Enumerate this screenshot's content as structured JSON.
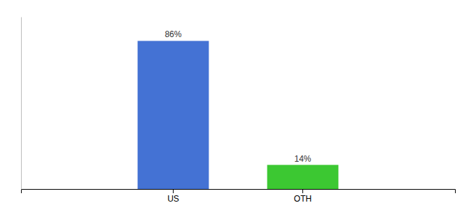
{
  "chart_data": {
    "type": "bar",
    "categories": [
      "US",
      "OTH"
    ],
    "values": [
      86,
      14
    ],
    "value_labels": [
      "86%",
      "14%"
    ],
    "colors": [
      "#4472d4",
      "#3cc832"
    ],
    "ylim": [
      0,
      100
    ],
    "data_labels": true,
    "tick_labels": "x",
    "grid": false
  }
}
